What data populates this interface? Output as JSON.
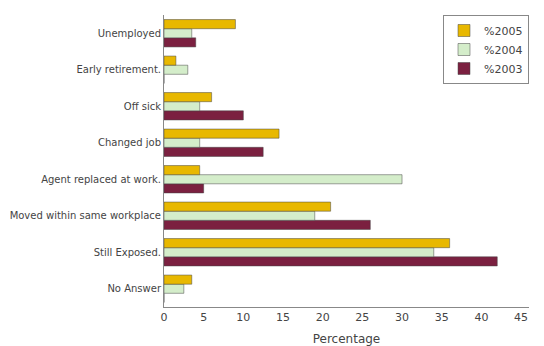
{
  "chart_data": {
    "type": "bar",
    "orientation": "horizontal",
    "categories": [
      "No Answer",
      "Still Exposed.",
      "Moved within same workplace",
      "Agent replaced at work.",
      "Changed job",
      "Off sick",
      "Early retirement.",
      "Unemployed"
    ],
    "series": [
      {
        "name": "%2005",
        "color": "#E8B800",
        "values": [
          3.5,
          36,
          21,
          4.5,
          14.5,
          6.0,
          1.5,
          9.0
        ]
      },
      {
        "name": "%2004",
        "color": "#D4EDCA",
        "values": [
          2.5,
          34,
          19,
          30,
          4.5,
          4.5,
          3.0,
          3.5
        ]
      },
      {
        "name": "%2003",
        "color": "#7B2040",
        "values": [
          0,
          42,
          26,
          5.0,
          12.5,
          10,
          0,
          4.0
        ]
      }
    ],
    "xlabel": "Percentage",
    "xlim": [
      0,
      46
    ],
    "xticks": [
      0,
      5,
      10,
      15,
      20,
      25,
      30,
      35,
      40,
      45
    ],
    "grid": false,
    "legend": "upper right"
  }
}
